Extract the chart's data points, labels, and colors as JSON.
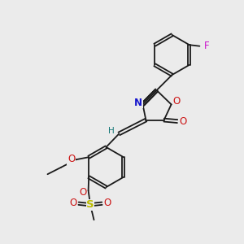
{
  "bg_color": "#ebebeb",
  "bond_color": "#1a1a1a",
  "N_color": "#1414cc",
  "O_color": "#cc1414",
  "F_color": "#cc14cc",
  "S_color": "#bbbb00",
  "H_color": "#147878",
  "text_fontsize": 7.5,
  "figsize": [
    3.0,
    3.0
  ],
  "dpi": 100,
  "lw": 1.3,
  "xlim": [
    0,
    10
  ],
  "ylim": [
    0,
    10
  ]
}
